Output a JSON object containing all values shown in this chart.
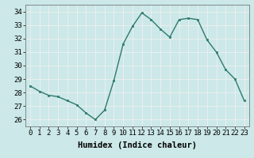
{
  "x": [
    0,
    1,
    2,
    3,
    4,
    5,
    6,
    7,
    8,
    9,
    10,
    11,
    12,
    13,
    14,
    15,
    16,
    17,
    18,
    19,
    20,
    21,
    22,
    23
  ],
  "y": [
    28.5,
    28.1,
    27.8,
    27.7,
    27.4,
    27.1,
    26.5,
    26.0,
    26.7,
    28.9,
    31.6,
    32.9,
    33.9,
    33.4,
    32.7,
    32.1,
    33.4,
    33.5,
    33.4,
    31.9,
    31.0,
    29.7,
    29.0,
    27.4
  ],
  "line_color": "#2d7a6e",
  "marker": "s",
  "marker_size": 2.0,
  "bg_color": "#cce8e8",
  "grid_color": "#f0f0f0",
  "xlabel": "Humidex (Indice chaleur)",
  "xlim": [
    -0.5,
    23.5
  ],
  "ylim": [
    25.5,
    34.5
  ],
  "yticks": [
    26,
    27,
    28,
    29,
    30,
    31,
    32,
    33,
    34
  ],
  "xticks": [
    0,
    1,
    2,
    3,
    4,
    5,
    6,
    7,
    8,
    9,
    10,
    11,
    12,
    13,
    14,
    15,
    16,
    17,
    18,
    19,
    20,
    21,
    22,
    23
  ],
  "xlabel_fontsize": 7.5,
  "tick_fontsize": 6.5,
  "line_width": 1.0
}
